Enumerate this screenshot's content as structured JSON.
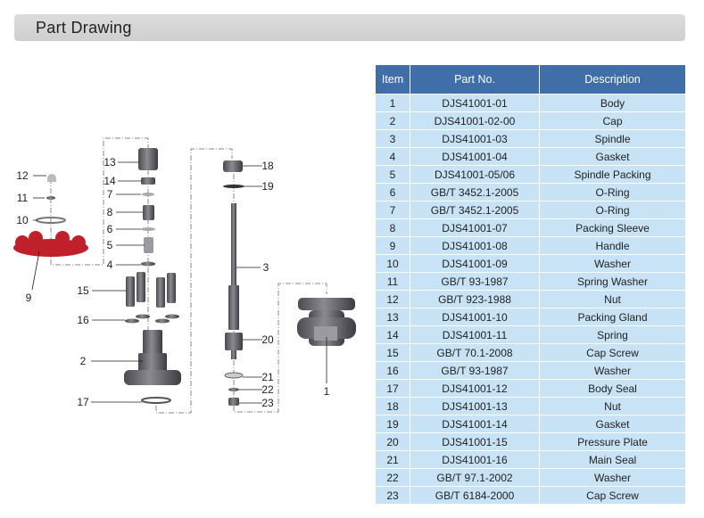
{
  "header": {
    "title": "Part Drawing"
  },
  "table": {
    "columns": [
      "Item",
      "Part No.",
      "Description"
    ],
    "rows": [
      [
        "1",
        "DJS41001-01",
        "Body"
      ],
      [
        "2",
        "DJS41001-02-00",
        "Cap"
      ],
      [
        "3",
        "DJS41001-03",
        "Spindle"
      ],
      [
        "4",
        "DJS41001-04",
        "Gasket"
      ],
      [
        "5",
        "DJS41001-05/06",
        "Spindle Packing"
      ],
      [
        "6",
        "GB/T 3452.1-2005",
        "O-Ring"
      ],
      [
        "7",
        "GB/T 3452.1-2005",
        "O-Ring"
      ],
      [
        "8",
        "DJS41001-07",
        "Packing Sleeve"
      ],
      [
        "9",
        "DJS41001-08",
        "Handle"
      ],
      [
        "10",
        "DJS41001-09",
        "Washer"
      ],
      [
        "11",
        "GB/T 93-1987",
        "Spring Washer"
      ],
      [
        "12",
        "GB/T 923-1988",
        "Nut"
      ],
      [
        "13",
        "DJS41001-10",
        "Packing Gland"
      ],
      [
        "14",
        "DJS41001-11",
        "Spring"
      ],
      [
        "15",
        "GB/T 70.1-2008",
        "Cap Screw"
      ],
      [
        "16",
        "GB/T 93-1987",
        "Washer"
      ],
      [
        "17",
        "DJS41001-12",
        "Body Seal"
      ],
      [
        "18",
        "DJS41001-13",
        "Nut"
      ],
      [
        "19",
        "DJS41001-14",
        "Gasket"
      ],
      [
        "20",
        "DJS41001-15",
        "Pressure Plate"
      ],
      [
        "21",
        "DJS41001-16",
        "Main Seal"
      ],
      [
        "22",
        "GB/T 97.1-2002",
        "Washer"
      ],
      [
        "23",
        "GB/T 6184-2000",
        "Cap Screw"
      ]
    ]
  },
  "drawing": {
    "callouts": [
      "12",
      "11",
      "10",
      "9",
      "13",
      "14",
      "7",
      "8",
      "6",
      "5",
      "4",
      "15",
      "16",
      "2",
      "17",
      "18",
      "19",
      "3",
      "20",
      "21",
      "22",
      "23",
      "1"
    ],
    "colors": {
      "handle": "#c0202a",
      "metal": "#6a6a70",
      "header_bg": "#3f6ea8",
      "cell_bg": "#c7e3f5"
    }
  }
}
